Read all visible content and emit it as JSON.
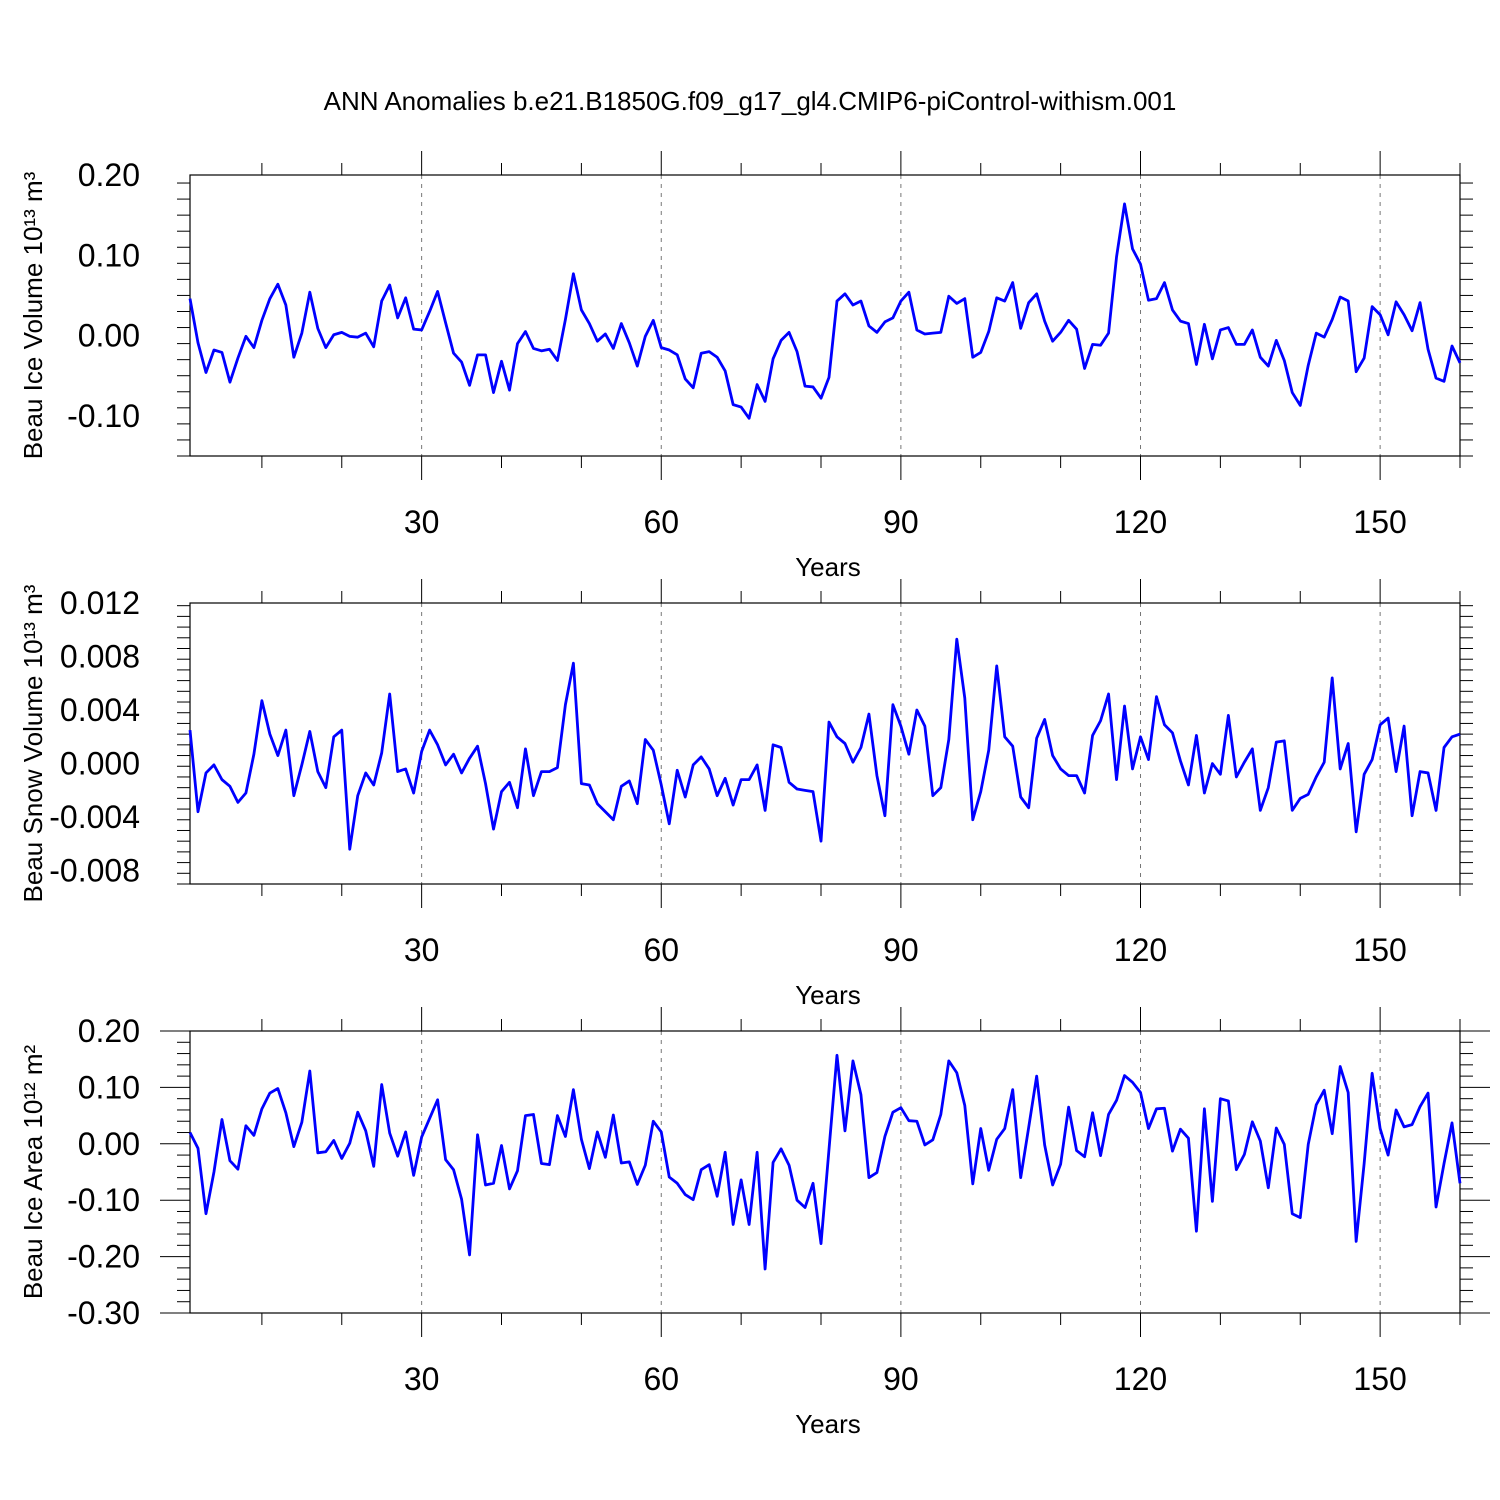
{
  "title": "ANN Anomalies b.e21.B1850G.f09_g17_gl4.CMIP6-piControl-withism.001",
  "colors": {
    "line": "#0000ff",
    "axes": "#000000",
    "grid": "#777777"
  },
  "chart_data": [
    {
      "type": "line",
      "xlabel": "Years",
      "ylabel": "Beau Ice Volume 10¹³ m³",
      "xlim": [
        1,
        160
      ],
      "ylim": [
        -0.15,
        0.2
      ],
      "x_ticks": [
        30,
        60,
        90,
        120,
        150
      ],
      "x_tick_labels": [
        "30",
        "60",
        "90",
        "120",
        "150"
      ],
      "y_ticks": [
        0.2,
        0.1,
        0.0,
        -0.1
      ],
      "y_tick_labels": [
        "0.20",
        "0.10",
        "0.00",
        "-0.10"
      ],
      "x_grid": "dashed at major ticks",
      "series": [
        {
          "x_start": 1,
          "values": [
            0.046,
            -0.009,
            -0.046,
            -0.018,
            -0.021,
            -0.058,
            -0.028,
            -0.001,
            -0.015,
            0.019,
            0.046,
            0.064,
            0.038,
            -0.027,
            0.003,
            0.054,
            0.009,
            -0.015,
            0.001,
            0.004,
            -0.001,
            -0.002,
            0.003,
            -0.014,
            0.043,
            0.063,
            0.022,
            0.047,
            0.008,
            0.007,
            0.03,
            0.055,
            0.016,
            -0.022,
            -0.033,
            -0.062,
            -0.024,
            -0.024,
            -0.071,
            -0.032,
            -0.068,
            -0.01,
            0.005,
            -0.016,
            -0.019,
            -0.017,
            -0.031,
            0.02,
            0.077,
            0.032,
            0.015,
            -0.007,
            0.002,
            -0.016,
            0.015,
            -0.009,
            -0.038,
            -0.001,
            0.019,
            -0.015,
            -0.018,
            -0.024,
            -0.054,
            -0.065,
            -0.022,
            -0.02,
            -0.027,
            -0.044,
            -0.086,
            -0.089,
            -0.103,
            -0.061,
            -0.082,
            -0.029,
            -0.006,
            0.004,
            -0.02,
            -0.063,
            -0.064,
            -0.078,
            -0.052,
            0.043,
            0.052,
            0.038,
            0.043,
            0.012,
            0.004,
            0.017,
            0.022,
            0.043,
            0.054,
            0.007,
            0.002,
            0.003,
            0.004,
            0.049,
            0.04,
            0.046,
            -0.027,
            -0.021,
            0.005,
            0.047,
            0.043,
            0.066,
            0.009,
            0.041,
            0.052,
            0.018,
            -0.007,
            0.004,
            0.019,
            0.008,
            -0.041,
            -0.011,
            -0.012,
            0.003,
            0.098,
            0.164,
            0.108,
            0.089,
            0.044,
            0.046,
            0.066,
            0.032,
            0.018,
            0.015,
            -0.036,
            0.014,
            -0.029,
            0.007,
            0.01,
            -0.011,
            -0.011,
            0.007,
            -0.027,
            -0.038,
            -0.006,
            -0.031,
            -0.071,
            -0.087,
            -0.037,
            0.003,
            -0.002,
            0.02,
            0.048,
            0.043,
            -0.045,
            -0.028,
            0.036,
            0.026,
            0.001,
            0.042,
            0.026,
            0.006,
            0.041,
            -0.017,
            -0.053,
            -0.057,
            -0.013,
            -0.034
          ]
        }
      ]
    },
    {
      "type": "line",
      "xlabel": "Years",
      "ylabel": "Beau Snow Volume 10¹³ m³",
      "xlim": [
        1,
        160
      ],
      "ylim": [
        -0.009,
        0.012
      ],
      "x_ticks": [
        30,
        60,
        90,
        120,
        150
      ],
      "x_tick_labels": [
        "30",
        "60",
        "90",
        "120",
        "150"
      ],
      "y_ticks": [
        0.012,
        0.008,
        0.004,
        0.0,
        -0.004,
        -0.008
      ],
      "y_tick_labels": [
        "0.012",
        "0.008",
        "0.004",
        "0.000",
        "-0.004",
        "-0.008"
      ],
      "x_grid": "dashed at major ticks",
      "series": [
        {
          "x_start": 1,
          "values": [
            0.0025,
            -0.0036,
            -0.0007,
            -0.0001,
            -0.0012,
            -0.0017,
            -0.0029,
            -0.0022,
            0.0007,
            0.0047,
            0.0022,
            0.0006,
            0.0025,
            -0.0024,
            -0.0001,
            0.0024,
            -0.0006,
            -0.0018,
            0.002,
            0.0025,
            -0.0064,
            -0.0024,
            -0.0007,
            -0.0016,
            0.0008,
            0.0052,
            -0.0006,
            -0.0004,
            -0.0022,
            0.0009,
            0.0025,
            0.0014,
            -0.0001,
            0.0007,
            -0.0007,
            0.0004,
            0.0013,
            -0.0015,
            -0.0049,
            -0.0021,
            -0.0014,
            -0.0033,
            0.0011,
            -0.0024,
            -0.0006,
            -0.0006,
            -0.0003,
            0.0044,
            0.0075,
            -0.0015,
            -0.0016,
            -0.003,
            -0.0036,
            -0.0042,
            -0.0017,
            -0.0013,
            -0.003,
            0.0018,
            0.001,
            -0.0016,
            -0.0045,
            -0.0005,
            -0.0025,
            -0.0001,
            0.0005,
            -0.0004,
            -0.0024,
            -0.0011,
            -0.0031,
            -0.0012,
            -0.0012,
            -0.0001,
            -0.0035,
            0.0014,
            0.0012,
            -0.0014,
            -0.0019,
            -0.002,
            -0.0021,
            -0.0058,
            0.0031,
            0.002,
            0.0015,
            0.0001,
            0.0012,
            0.0037,
            -0.0009,
            -0.0039,
            0.0044,
            0.0028,
            0.0007,
            0.004,
            0.0028,
            -0.0024,
            -0.0018,
            0.0018,
            0.0093,
            0.0049,
            -0.0042,
            -0.0021,
            0.001,
            0.0073,
            0.002,
            0.0013,
            -0.0025,
            -0.0033,
            0.0019,
            0.0033,
            0.0006,
            -0.0004,
            -0.0009,
            -0.0009,
            -0.0022,
            0.0021,
            0.0032,
            0.0052,
            -0.0012,
            0.0043,
            -0.0004,
            0.002,
            0.0003,
            0.005,
            0.0029,
            0.0023,
            0.0002,
            -0.0016,
            0.0021,
            -0.0022,
            0.0,
            -0.0008,
            0.0036,
            -0.001,
            0.0001,
            0.0011,
            -0.0035,
            -0.0018,
            0.0016,
            0.0017,
            -0.0035,
            -0.0026,
            -0.0023,
            -0.001,
            0.0001,
            0.0064,
            -0.0004,
            0.0015,
            -0.0051,
            -0.0008,
            0.0003,
            0.0029,
            0.0034,
            -0.0006,
            0.0028,
            -0.0039,
            -0.0006,
            -0.0007,
            -0.0035,
            0.0012,
            0.002,
            0.0022
          ]
        }
      ]
    },
    {
      "type": "line",
      "xlabel": "Years",
      "ylabel": "Beau Ice Area 10¹² m²",
      "xlim": [
        1,
        160
      ],
      "ylim": [
        -0.3,
        0.2
      ],
      "x_ticks": [
        30,
        60,
        90,
        120,
        150
      ],
      "x_tick_labels": [
        "30",
        "60",
        "90",
        "120",
        "150"
      ],
      "y_ticks": [
        0.2,
        0.1,
        0.0,
        -0.1,
        -0.2,
        -0.3
      ],
      "y_tick_labels": [
        "0.20",
        "0.10",
        "0.00",
        "-0.10",
        "-0.20",
        "-0.30"
      ],
      "x_grid": "dashed at major ticks",
      "series": [
        {
          "x_start": 1,
          "values": [
            0.02,
            -0.008,
            -0.124,
            -0.05,
            0.043,
            -0.03,
            -0.045,
            0.032,
            0.015,
            0.062,
            0.09,
            0.098,
            0.055,
            -0.005,
            0.038,
            0.129,
            -0.016,
            -0.014,
            0.006,
            -0.026,
            0.001,
            0.056,
            0.023,
            -0.04,
            0.105,
            0.019,
            -0.022,
            0.021,
            -0.056,
            0.012,
            0.045,
            0.078,
            -0.028,
            -0.046,
            -0.098,
            -0.197,
            0.016,
            -0.073,
            -0.07,
            -0.003,
            -0.08,
            -0.048,
            0.05,
            0.052,
            -0.035,
            -0.037,
            0.05,
            0.013,
            0.096,
            0.008,
            -0.044,
            0.021,
            -0.024,
            0.051,
            -0.034,
            -0.032,
            -0.072,
            -0.038,
            0.04,
            0.021,
            -0.059,
            -0.07,
            -0.09,
            -0.099,
            -0.046,
            -0.037,
            -0.093,
            -0.015,
            -0.143,
            -0.064,
            -0.143,
            -0.015,
            -0.222,
            -0.033,
            -0.009,
            -0.038,
            -0.1,
            -0.113,
            -0.07,
            -0.177,
            -0.01,
            0.157,
            0.023,
            0.147,
            0.087,
            -0.06,
            -0.051,
            0.013,
            0.056,
            0.064,
            0.041,
            0.04,
            -0.002,
            0.007,
            0.052,
            0.147,
            0.126,
            0.068,
            -0.071,
            0.027,
            -0.047,
            0.008,
            0.027,
            0.096,
            -0.06,
            0.029,
            0.12,
            -0.002,
            -0.073,
            -0.036,
            0.065,
            -0.012,
            -0.023,
            0.055,
            -0.021,
            0.052,
            0.077,
            0.121,
            0.109,
            0.091,
            0.027,
            0.062,
            0.063,
            -0.013,
            0.026,
            0.01,
            -0.155,
            0.062,
            -0.102,
            0.08,
            0.076,
            -0.046,
            -0.019,
            0.039,
            0.005,
            -0.078,
            0.028,
            -0.001,
            -0.124,
            -0.131,
            -0.001,
            0.069,
            0.095,
            0.018,
            0.137,
            0.091,
            -0.173,
            -0.035,
            0.125,
            0.027,
            -0.02,
            0.06,
            0.03,
            0.034,
            0.066,
            0.09,
            -0.112,
            -0.035,
            0.037,
            -0.07
          ]
        }
      ]
    }
  ]
}
